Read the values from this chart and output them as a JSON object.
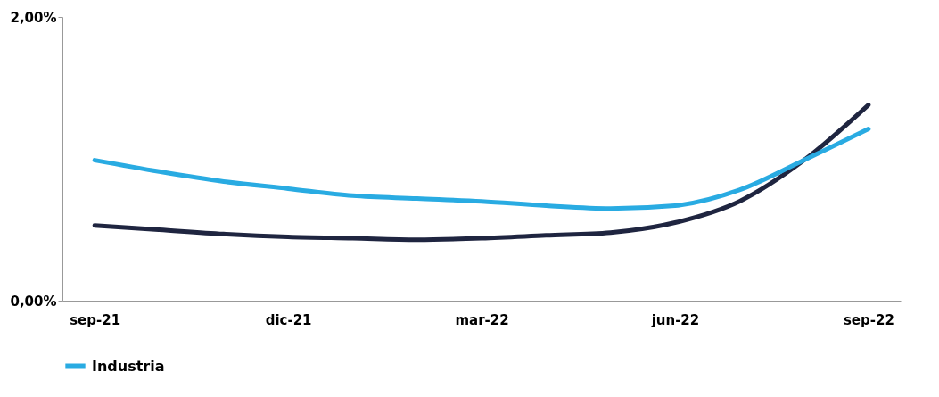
{
  "chart_data": {
    "type": "line",
    "categories": [
      "sep-21",
      null,
      null,
      "dic-21",
      null,
      null,
      "mar-22",
      null,
      null,
      "jun-22",
      null,
      null,
      "sep-22"
    ],
    "series": [
      {
        "color": "#1f2540",
        "values": [
          0.53,
          0.5,
          0.47,
          0.45,
          0.44,
          0.43,
          0.44,
          0.46,
          0.48,
          0.55,
          0.7,
          0.99,
          1.38
        ]
      },
      {
        "name": "Industria",
        "color": "#29abe2",
        "values": [
          0.99,
          0.91,
          0.84,
          0.79,
          0.74,
          0.72,
          0.7,
          0.67,
          0.65,
          0.67,
          0.78,
          0.99,
          1.21
        ]
      }
    ],
    "ylim": [
      0,
      2
    ],
    "yticks": [
      {
        "value": 0,
        "label": "0,00%"
      },
      {
        "value": 2,
        "label": "2,00%"
      }
    ],
    "grid": false,
    "legend": "bottom",
    "marker": "none",
    "line_style": "solid"
  }
}
